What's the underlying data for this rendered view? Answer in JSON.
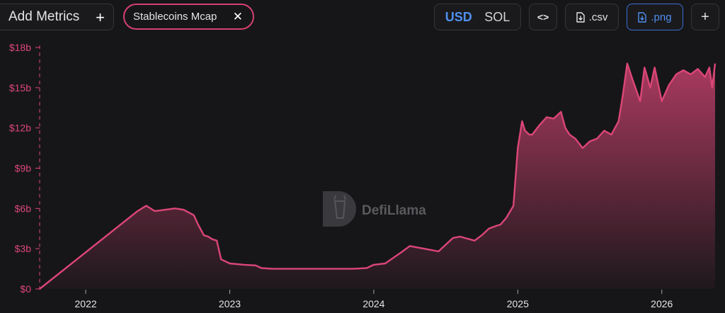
{
  "toolbar": {
    "add_metrics_label": "Add Metrics",
    "add_icon": "+",
    "metric_chip_label": "Stablecoins Mcap",
    "close_icon": "✕",
    "currency_usd": "USD",
    "currency_sol": "SOL",
    "embed_icon": "<>",
    "csv_label": ".csv",
    "png_label": ".png",
    "add_chart_icon": "+"
  },
  "watermark": {
    "text": "DefiLlama"
  },
  "colors": {
    "series": "#dc4677",
    "accent": "#4f8ff0",
    "background": "#161618"
  },
  "chart_data": {
    "type": "area",
    "title": "",
    "xlabel": "",
    "ylabel": "",
    "x_ticks": [
      "2022",
      "2023",
      "2024",
      "2025",
      "2026"
    ],
    "y_ticks": [
      "$0",
      "$3b",
      "$6b",
      "$9b",
      "$12b",
      "$15b",
      "$18b"
    ],
    "ylim": [
      0,
      18
    ],
    "xlim": [
      2021.68,
      2026.37
    ],
    "grid": false,
    "series": [
      {
        "name": "Stablecoins Mcap",
        "unit": "billion USD",
        "x": [
          2021.68,
          2022.36,
          2022.42,
          2022.48,
          2022.55,
          2022.62,
          2022.68,
          2022.75,
          2022.78,
          2022.82,
          2022.85,
          2022.88,
          2022.91,
          2022.94,
          2023.0,
          2023.1,
          2023.18,
          2023.22,
          2023.3,
          2023.5,
          2023.75,
          2023.85,
          2023.95,
          2024.0,
          2024.08,
          2024.12,
          2024.2,
          2024.25,
          2024.3,
          2024.35,
          2024.45,
          2024.5,
          2024.55,
          2024.6,
          2024.65,
          2024.7,
          2024.75,
          2024.8,
          2024.85,
          2024.88,
          2024.92,
          2024.97,
          2025.0,
          2025.03,
          2025.05,
          2025.08,
          2025.1,
          2025.15,
          2025.2,
          2025.25,
          2025.3,
          2025.33,
          2025.36,
          2025.4,
          2025.45,
          2025.5,
          2025.55,
          2025.6,
          2025.65,
          2025.7,
          2025.73,
          2025.76,
          2025.8,
          2025.85,
          2025.88,
          2025.92,
          2025.95,
          2026.0,
          2026.05,
          2026.1,
          2026.15,
          2026.2,
          2026.25,
          2026.3,
          2026.33,
          2026.35,
          2026.37
        ],
        "values": [
          0.0,
          5.8,
          6.2,
          5.8,
          5.9,
          6.0,
          5.9,
          5.5,
          4.8,
          4.0,
          3.9,
          3.7,
          3.6,
          2.2,
          1.9,
          1.8,
          1.75,
          1.55,
          1.5,
          1.5,
          1.5,
          1.5,
          1.55,
          1.8,
          1.9,
          2.2,
          2.8,
          3.2,
          3.1,
          3.0,
          2.8,
          3.3,
          3.8,
          3.9,
          3.75,
          3.6,
          4.0,
          4.5,
          4.7,
          4.8,
          5.3,
          6.2,
          10.5,
          12.5,
          11.8,
          11.5,
          11.5,
          12.2,
          12.8,
          12.7,
          13.2,
          12.0,
          11.5,
          11.2,
          10.5,
          11.0,
          11.2,
          11.8,
          11.5,
          12.5,
          14.5,
          16.8,
          15.5,
          14.0,
          16.5,
          15.0,
          16.5,
          14.0,
          15.2,
          16.0,
          16.3,
          16.0,
          16.4,
          15.8,
          16.5,
          15.0,
          16.8
        ]
      }
    ]
  }
}
